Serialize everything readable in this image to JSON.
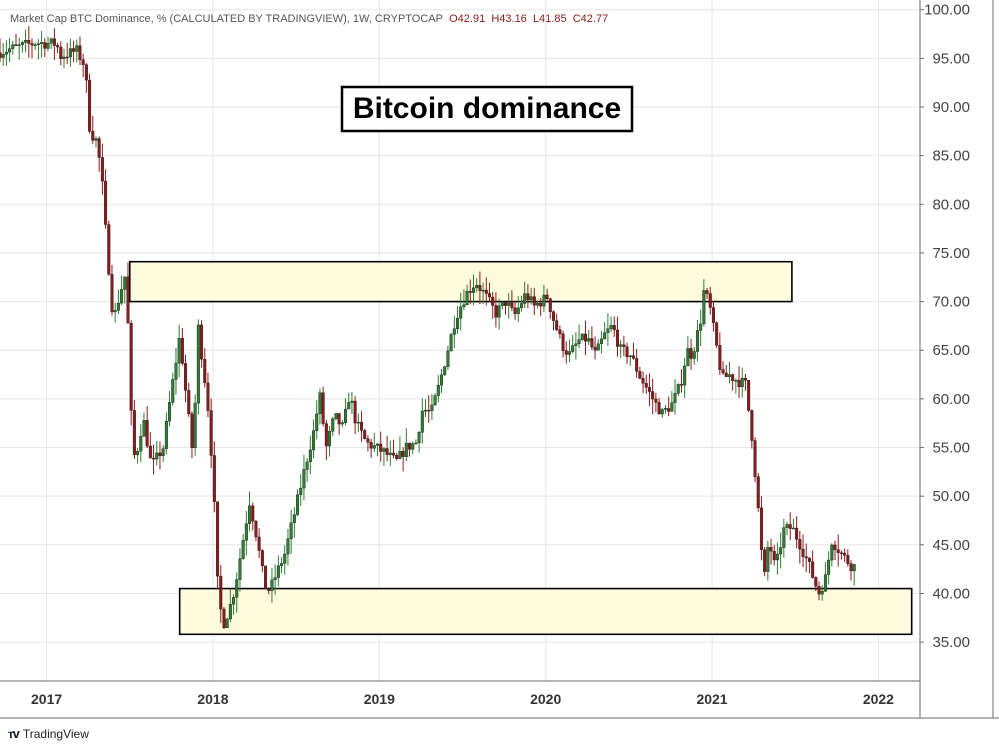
{
  "legend": {
    "text": "Market Cap BTC Dominance, % (CALCULATED BY TRADINGVIEW), 1W, CRYPTOCAP",
    "open": "O42.91",
    "high": "H43.16",
    "low": "L41.85",
    "close": "C42.77"
  },
  "branding": {
    "logo_icon": "tradingview-logo-icon",
    "label": "TradingView"
  },
  "colors": {
    "up": "#2e7d32",
    "down": "#8b1a1a",
    "zone_fill": "#fffbdf",
    "zone_stroke": "#000000",
    "grid": "#e6e6e6"
  },
  "chart_data": {
    "type": "candlestick",
    "title": "Bitcoin dominance",
    "y_axis": {
      "position": "right",
      "ylim": [
        31,
        101
      ],
      "ticks": [
        35,
        40,
        45,
        50,
        55,
        60,
        65,
        70,
        75,
        80,
        85,
        90,
        95,
        100
      ],
      "tick_labels": [
        "35.00",
        "40.00",
        "45.00",
        "50.00",
        "55.00",
        "60.00",
        "65.00",
        "70.00",
        "75.00",
        "80.00",
        "85.00",
        "90.00",
        "95.00",
        "100.00"
      ]
    },
    "x_axis": {
      "range": [
        2016.72,
        2022.25
      ],
      "ticks": [
        2017,
        2018,
        2019,
        2020,
        2021,
        2022
      ],
      "tick_labels": [
        "2017",
        "2018",
        "2019",
        "2020",
        "2021",
        "2022"
      ]
    },
    "zones": [
      {
        "name": "resistance-zone",
        "x_range": [
          2017.5,
          2021.48
        ],
        "y_range": [
          70,
          74.1
        ]
      },
      {
        "name": "support-zone",
        "x_range": [
          2017.8,
          2022.2
        ],
        "y_range": [
          35.8,
          40.5
        ]
      }
    ],
    "path": [
      [
        2016.72,
        95.6
      ],
      [
        2016.95,
        96.6
      ],
      [
        2017.08,
        96.5
      ],
      [
        2017.1,
        95.2
      ],
      [
        2017.2,
        95.8
      ],
      [
        2017.25,
        94.2
      ],
      [
        2017.28,
        87.5
      ],
      [
        2017.32,
        86.5
      ],
      [
        2017.35,
        83.0
      ],
      [
        2017.38,
        76.0
      ],
      [
        2017.42,
        68.0
      ],
      [
        2017.46,
        70.8
      ],
      [
        2017.5,
        73.2
      ],
      [
        2017.52,
        60.0
      ],
      [
        2017.55,
        53.5
      ],
      [
        2017.6,
        58.0
      ],
      [
        2017.65,
        53.0
      ],
      [
        2017.72,
        55.0
      ],
      [
        2017.78,
        62.0
      ],
      [
        2017.82,
        66.5
      ],
      [
        2017.86,
        60.0
      ],
      [
        2017.9,
        54.0
      ],
      [
        2017.93,
        67.5
      ],
      [
        2017.97,
        62.0
      ],
      [
        2017.99,
        59.0
      ],
      [
        2018.02,
        52.0
      ],
      [
        2018.05,
        40.0
      ],
      [
        2018.08,
        36.8
      ],
      [
        2018.12,
        38.5
      ],
      [
        2018.15,
        40.5
      ],
      [
        2018.2,
        45.5
      ],
      [
        2018.24,
        49.5
      ],
      [
        2018.28,
        46.0
      ],
      [
        2018.33,
        40.8
      ],
      [
        2018.36,
        40.3
      ],
      [
        2018.4,
        42.0
      ],
      [
        2018.45,
        44.0
      ],
      [
        2018.52,
        49.0
      ],
      [
        2018.58,
        53.5
      ],
      [
        2018.63,
        57.0
      ],
      [
        2018.66,
        60.5
      ],
      [
        2018.7,
        55.0
      ],
      [
        2018.75,
        58.2
      ],
      [
        2018.8,
        57.0
      ],
      [
        2018.84,
        60.5
      ],
      [
        2018.88,
        57.5
      ],
      [
        2018.94,
        55.5
      ],
      [
        2019.05,
        54.5
      ],
      [
        2019.12,
        53.5
      ],
      [
        2019.18,
        55.0
      ],
      [
        2019.24,
        55.5
      ],
      [
        2019.28,
        59.0
      ],
      [
        2019.33,
        58.5
      ],
      [
        2019.38,
        61.5
      ],
      [
        2019.43,
        65.0
      ],
      [
        2019.48,
        68.5
      ],
      [
        2019.52,
        70.0
      ],
      [
        2019.55,
        71.0
      ],
      [
        2019.6,
        72.0
      ],
      [
        2019.65,
        70.8
      ],
      [
        2019.72,
        68.8
      ],
      [
        2019.78,
        70.0
      ],
      [
        2019.83,
        68.5
      ],
      [
        2019.9,
        70.8
      ],
      [
        2019.95,
        69.5
      ],
      [
        2020.03,
        70.5
      ],
      [
        2020.06,
        68.5
      ],
      [
        2020.12,
        65.5
      ],
      [
        2020.16,
        64.5
      ],
      [
        2020.22,
        66.0
      ],
      [
        2020.27,
        66.2
      ],
      [
        2020.32,
        64.5
      ],
      [
        2020.37,
        66.5
      ],
      [
        2020.42,
        67.5
      ],
      [
        2020.47,
        65.0
      ],
      [
        2020.53,
        64.5
      ],
      [
        2020.58,
        62.5
      ],
      [
        2020.63,
        61.0
      ],
      [
        2020.68,
        59.5
      ],
      [
        2020.72,
        58.5
      ],
      [
        2020.78,
        59.5
      ],
      [
        2020.83,
        61.5
      ],
      [
        2020.87,
        65.0
      ],
      [
        2020.9,
        64.5
      ],
      [
        2020.95,
        68.0
      ],
      [
        2020.97,
        71.0
      ],
      [
        2021.0,
        70.0
      ],
      [
        2021.04,
        66.0
      ],
      [
        2021.08,
        62.0
      ],
      [
        2021.12,
        62.5
      ],
      [
        2021.16,
        62.0
      ],
      [
        2021.22,
        61.5
      ],
      [
        2021.26,
        56.0
      ],
      [
        2021.3,
        48.0
      ],
      [
        2021.33,
        41.0
      ],
      [
        2021.36,
        45.5
      ],
      [
        2021.4,
        42.5
      ],
      [
        2021.45,
        46.5
      ],
      [
        2021.5,
        46.8
      ],
      [
        2021.55,
        45.0
      ],
      [
        2021.6,
        43.0
      ],
      [
        2021.66,
        40.0
      ],
      [
        2021.7,
        41.5
      ],
      [
        2021.74,
        45.5
      ],
      [
        2021.8,
        44.0
      ],
      [
        2021.86,
        42.8
      ]
    ]
  }
}
